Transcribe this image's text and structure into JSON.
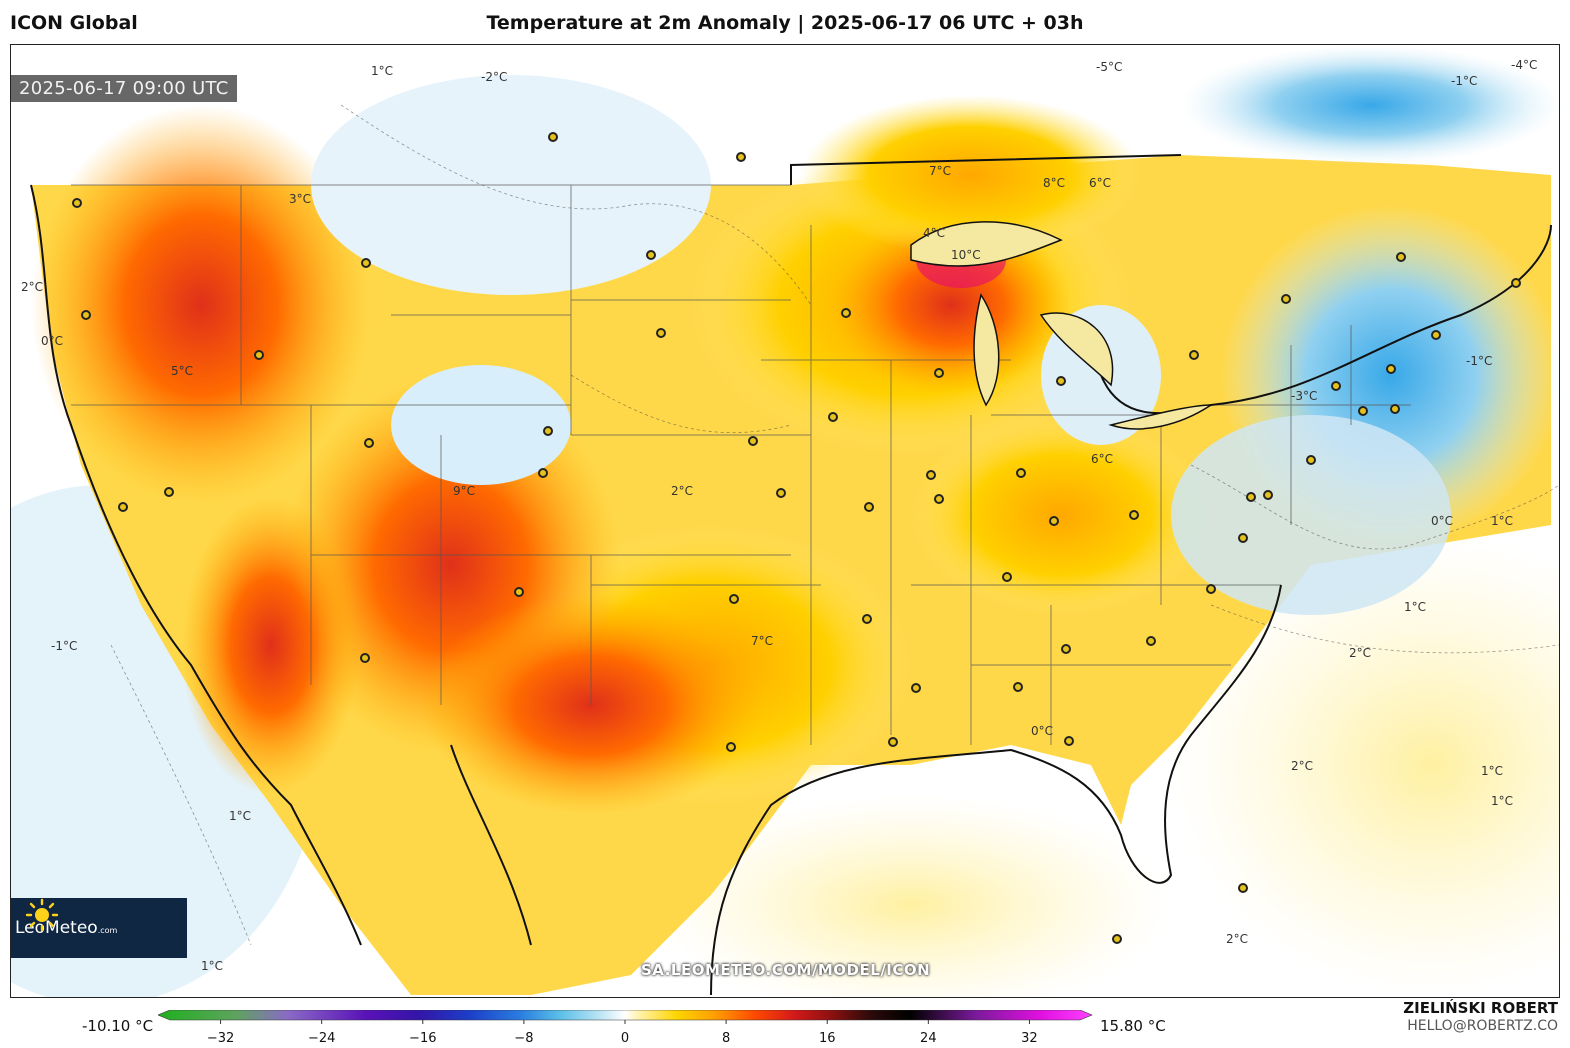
{
  "header": {
    "model": "ICON Global",
    "title": "Temperature at 2m Anomaly | 2025-06-17 06 UTC + 03h"
  },
  "valid_time": "2025-06-17 09:00 UTC",
  "source_url": "SA.LEOMETEO.COM/MODEL/ICON",
  "logo": {
    "text_main": "LeoMeteo",
    "text_suffix": ".com",
    "icon": "sun-icon"
  },
  "author": {
    "name": "ZIELIŃSKI ROBERT",
    "email": "HELLO@ROBERTZ.CO"
  },
  "colorbar": {
    "min_label": "-10.10 °C",
    "max_label": "15.80 °C",
    "ticks": [
      "−32",
      "−24",
      "−16",
      "−8",
      "0",
      "8",
      "16",
      "24",
      "32"
    ],
    "tick_values": [
      -32,
      -24,
      -16,
      -8,
      0,
      8,
      16,
      24,
      32
    ],
    "range": [
      -36,
      36
    ],
    "stops": [
      {
        "v": -36,
        "c": "#1fb01f"
      },
      {
        "v": -30,
        "c": "#5ea35e"
      },
      {
        "v": -26,
        "c": "#8a6ac6"
      },
      {
        "v": -20,
        "c": "#5a12b8"
      },
      {
        "v": -16,
        "c": "#3414a8"
      },
      {
        "v": -12,
        "c": "#1c3ec8"
      },
      {
        "v": -8,
        "c": "#2a7fe0"
      },
      {
        "v": -5,
        "c": "#5cbfe8"
      },
      {
        "v": -2,
        "c": "#b9e3f4"
      },
      {
        "v": 0,
        "c": "#ffffff"
      },
      {
        "v": 1,
        "c": "#fff3b0"
      },
      {
        "v": 4,
        "c": "#ffd500"
      },
      {
        "v": 7,
        "c": "#ff9c00"
      },
      {
        "v": 10,
        "c": "#ff4a00"
      },
      {
        "v": 13,
        "c": "#d41a1a"
      },
      {
        "v": 16,
        "c": "#8a1010"
      },
      {
        "v": 19,
        "c": "#2a0a0a"
      },
      {
        "v": 22,
        "c": "#000000"
      },
      {
        "v": 27,
        "c": "#7a1a9a"
      },
      {
        "v": 32,
        "c": "#e010e0"
      },
      {
        "v": 36,
        "c": "#ff40ff"
      }
    ]
  },
  "contour_labels": [
    "1°C",
    "-2°C",
    "2°C",
    "0°C",
    "3°C",
    "-5°C",
    "-4°C",
    "-1°C",
    "7°C",
    "8°C",
    "6°C",
    "4°C",
    "10°C",
    "9°C",
    "5°C",
    "2°C",
    "0°C",
    "1°C",
    "-1°C",
    "-3°C",
    "6°C",
    "7°C",
    "2°C",
    "1°C",
    "2°C",
    "1°C",
    "1°C",
    "0°C",
    "-1°C",
    "1°C",
    "1°C",
    "2°C"
  ]
}
